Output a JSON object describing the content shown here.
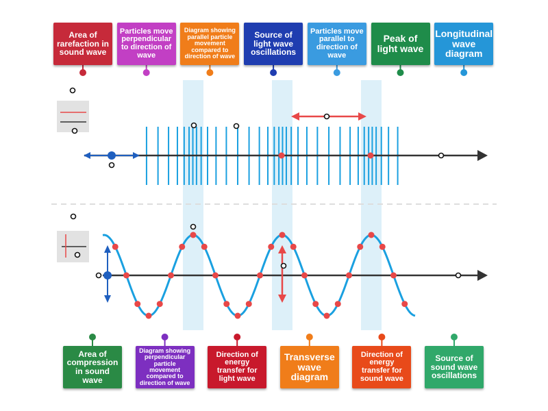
{
  "top_tiles": [
    {
      "label": "Area of rarefaction in sound wave",
      "color": "#c62a3a"
    },
    {
      "label": "Particles move perpendicular to direction of wave",
      "color": "#c23fc4"
    },
    {
      "label": "Diagram showing parallel particle movement compared to direction of wave",
      "color": "#f07d1a"
    },
    {
      "label": "Source of light wave oscillations",
      "color": "#1f3db0"
    },
    {
      "label": "Particles move parallel to direction of wave",
      "color": "#3a9be0"
    },
    {
      "label": "Peak of light wave",
      "color": "#1f8c4a"
    },
    {
      "label": "Longitudinal wave diagram",
      "color": "#2596d8"
    }
  ],
  "bottom_tiles": [
    {
      "label": "Area of compression in sound wave",
      "color": "#2a8a45"
    },
    {
      "label": "Diagram showing perpendicular particle movement compared to direction of wave",
      "color": "#7d2fc0"
    },
    {
      "label": "Direction of energy transfer for light wave",
      "color": "#c8192c"
    },
    {
      "label": "Transverse wave diagram",
      "color": "#f07d1a"
    },
    {
      "label": "Direction of energy transfer for sound wave",
      "color": "#e84a1a"
    },
    {
      "label": "Source of sound wave oscillations",
      "color": "#30a86a"
    }
  ]
}
